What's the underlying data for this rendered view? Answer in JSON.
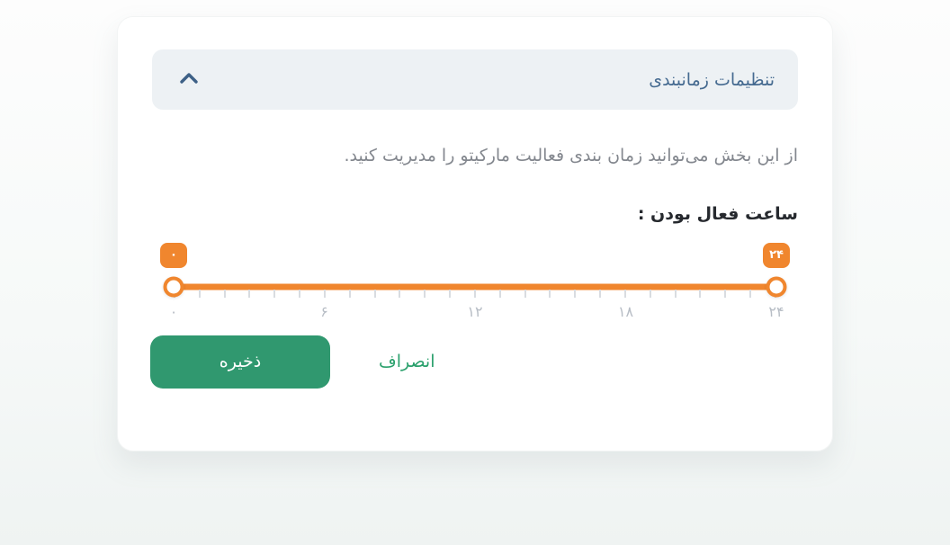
{
  "page": {
    "background_top": "#fdfdfd",
    "background_bottom": "#eff3f2"
  },
  "panel": {
    "header": {
      "title": "تنظیمات زمانبندی",
      "chevron_icon": "chevron-up",
      "background": "#edf1f4",
      "title_color": "#456a90",
      "chevron_color": "#3d6086"
    },
    "description": "از این بخش می‌توانید زمان بندی فعالیت مارکیتو را مدیریت کنید.",
    "slider": {
      "label": "ساعت فعال بودن :",
      "min": 0,
      "max": 24,
      "step": 1,
      "value_low": 0,
      "value_high": 24,
      "value_low_display": "۰",
      "value_high_display": "۲۴",
      "tick_count": 25,
      "tick_labels": [
        {
          "value": 0,
          "label": "۰"
        },
        {
          "value": 6,
          "label": "۶"
        },
        {
          "value": 12,
          "label": "۱۲"
        },
        {
          "value": 18,
          "label": "۱۸"
        },
        {
          "value": 24,
          "label": "۲۴"
        }
      ],
      "accent_color": "#f0862e",
      "tick_color": "#d9dce0",
      "tick_label_color": "#b7bdc5"
    },
    "actions": {
      "save_label": "ذخیره",
      "cancel_label": "انصراف",
      "save_color": "#30986f",
      "cancel_color": "#2aa06c"
    }
  }
}
